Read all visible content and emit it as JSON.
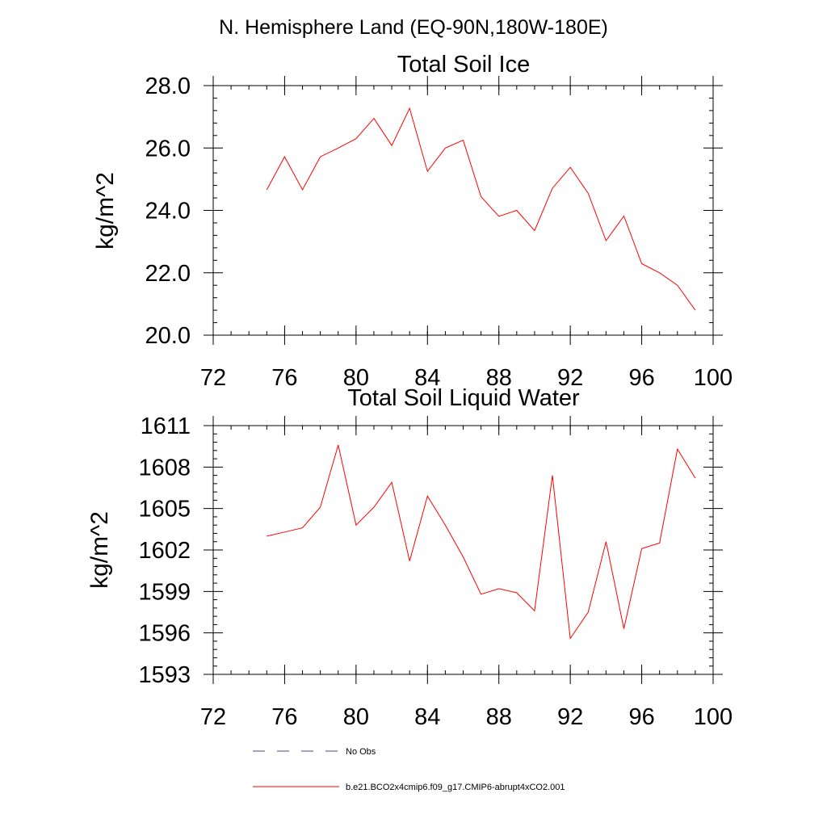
{
  "suptitle": "N. Hemisphere Land (EQ-90N,180W-180E)",
  "chart_data": [
    {
      "type": "line",
      "title": "Total Soil Ice",
      "xlabel": "",
      "ylabel": "kg/m^2",
      "xlim": [
        72,
        100
      ],
      "ylim": [
        20,
        28
      ],
      "xticks": [
        "72",
        "76",
        "80",
        "84",
        "88",
        "92",
        "96",
        "100"
      ],
      "yticks": [
        "20.0",
        "22.0",
        "24.0",
        "26.0",
        "28.0"
      ],
      "series": [
        {
          "name": "b.e21.BCO2x4cmip6.f09_g17.CMIP6-abrupt4xCO2.001",
          "color": "#ff0000",
          "x": [
            75,
            76,
            77,
            78,
            79,
            80,
            81,
            82,
            83,
            84,
            85,
            86,
            87,
            88,
            89,
            90,
            91,
            92,
            93,
            94,
            95,
            96,
            97,
            98,
            99
          ],
          "y": [
            24.66,
            25.72,
            24.66,
            25.72,
            26.0,
            26.3,
            26.95,
            26.08,
            27.27,
            25.25,
            26.0,
            26.25,
            24.44,
            23.81,
            24.0,
            23.35,
            24.71,
            25.38,
            24.55,
            23.03,
            23.82,
            22.29,
            22.0,
            21.6,
            20.8
          ]
        }
      ]
    },
    {
      "type": "line",
      "title": "Total Soil Liquid Water",
      "xlabel": "",
      "ylabel": "kg/m^2",
      "xlim": [
        72,
        100
      ],
      "ylim": [
        1593,
        1611
      ],
      "xticks": [
        "72",
        "76",
        "80",
        "84",
        "88",
        "92",
        "96",
        "100"
      ],
      "yticks": [
        "1593",
        "1596",
        "1599",
        "1602",
        "1605",
        "1608",
        "1611"
      ],
      "series": [
        {
          "name": "b.e21.BCO2x4cmip6.f09_g17.CMIP6-abrupt4xCO2.001",
          "color": "#ff0000",
          "x": [
            75,
            76,
            77,
            78,
            79,
            80,
            81,
            82,
            83,
            84,
            85,
            86,
            87,
            88,
            89,
            90,
            91,
            92,
            93,
            94,
            95,
            96,
            97,
            98,
            99
          ],
          "y": [
            1603.0,
            1603.3,
            1603.6,
            1605.1,
            1609.6,
            1603.8,
            1605.1,
            1606.9,
            1601.2,
            1605.9,
            1603.8,
            1601.5,
            1598.8,
            1599.2,
            1598.9,
            1597.6,
            1607.4,
            1595.6,
            1597.5,
            1602.6,
            1596.3,
            1602.1,
            1602.5,
            1609.3,
            1607.2
          ]
        }
      ]
    }
  ],
  "legend": [
    {
      "label": "No Obs",
      "style": "dashed",
      "color": "#4a4a7a"
    },
    {
      "label": "b.e21.BCO2x4cmip6.f09_g17.CMIP6-abrupt4xCO2.001",
      "style": "solid",
      "color": "#ff0000"
    }
  ]
}
